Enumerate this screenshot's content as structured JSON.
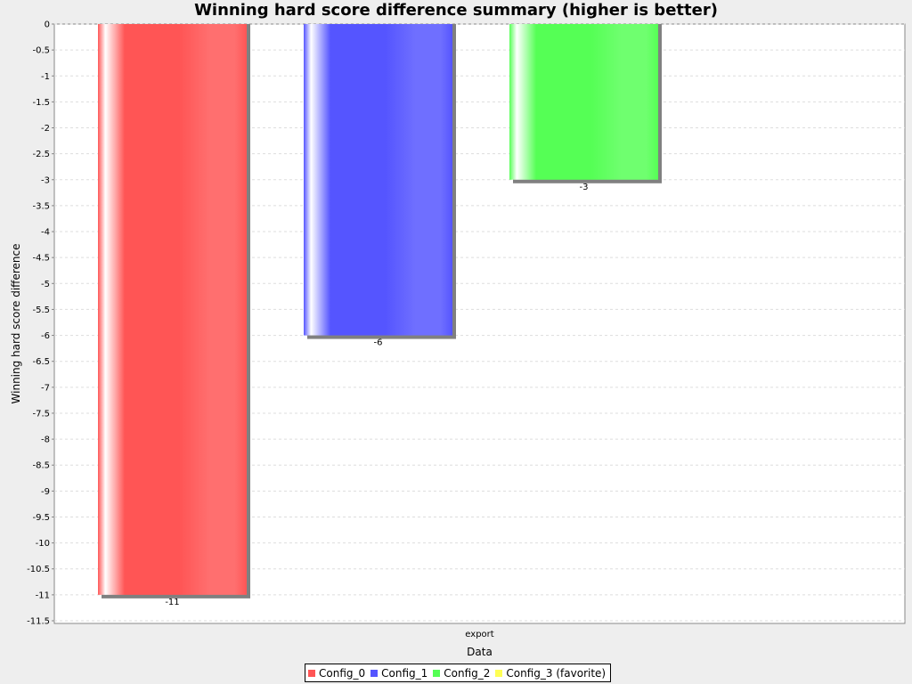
{
  "chart_data": {
    "type": "bar",
    "title": "Winning hard score difference summary (higher is better)",
    "xlabel": "Data",
    "ylabel": "Winning hard score difference",
    "categories": [
      "export"
    ],
    "series": [
      {
        "name": "Config_0",
        "values": [
          -11
        ],
        "color": "#ff5555"
      },
      {
        "name": "Config_1",
        "values": [
          -6
        ],
        "color": "#5555ff"
      },
      {
        "name": "Config_2",
        "values": [
          -3
        ],
        "color": "#55ff55"
      },
      {
        "name": "Config_3 (favorite)",
        "values": [
          null
        ],
        "color": "#ffff55"
      }
    ],
    "data_labels": [
      "-11",
      "-6",
      "-3"
    ],
    "ylim": [
      -11.5,
      0
    ],
    "yticks": [
      0,
      -0.5,
      -1,
      -1.5,
      -2,
      -2.5,
      -3,
      -3.5,
      -4,
      -4.5,
      -5,
      -5.5,
      -6,
      -6.5,
      -7,
      -7.5,
      -8,
      -8.5,
      -9,
      -9.5,
      -10,
      -10.5,
      -11,
      -11.5
    ],
    "ytick_labels": [
      "0",
      "-0.5",
      "-1",
      "-1.5",
      "-2",
      "-2.5",
      "-3",
      "-3.5",
      "-4",
      "-4.5",
      "-5",
      "-5.5",
      "-6",
      "-6.5",
      "-7",
      "-7.5",
      "-8",
      "-8.5",
      "-9",
      "-9.5",
      "-10",
      "-10.5",
      "-11",
      "-11.5"
    ],
    "grid": true,
    "legend_position": "bottom-center"
  }
}
